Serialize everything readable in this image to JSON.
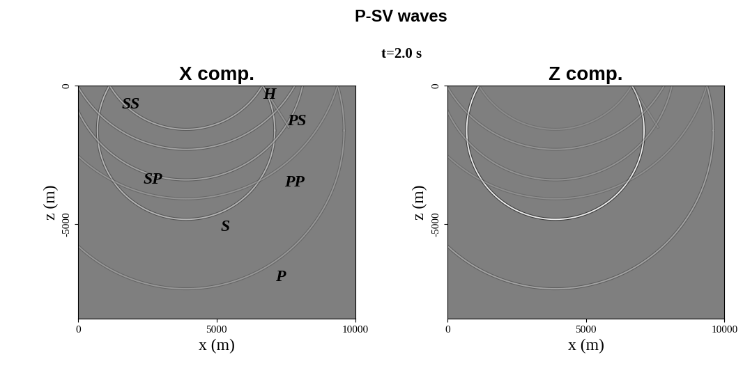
{
  "chart_data": {
    "type": "wavefield_snapshot",
    "title": "P-SV waves",
    "subtitle": "t=2.0 s",
    "panels": [
      {
        "title": "X comp.",
        "xlabel": "x (m)",
        "ylabel": "z (m)",
        "xlim": [
          0,
          10000
        ],
        "ylim": [
          -8400,
          0
        ],
        "xticks": [
          0,
          5000,
          10000
        ],
        "yticks": [
          -5000,
          0
        ],
        "fronts": [
          {
            "kind": "circle",
            "center": [
              3900,
              -1620
            ],
            "radius": 5700,
            "amplitude": 0.35
          },
          {
            "kind": "circle",
            "center": [
              3900,
              -1620
            ],
            "radius": 3200,
            "amplitude": 0.6
          },
          {
            "kind": "circle",
            "center": [
              3900,
              1620
            ],
            "radius": 5700,
            "amplitude": 0.3
          },
          {
            "kind": "circle",
            "center": [
              3900,
              1620
            ],
            "radius": 3200,
            "amplitude": 0.5
          },
          {
            "kind": "circle",
            "center": [
              3900,
              900
            ],
            "radius": 4300,
            "amplitude": 0.45
          },
          {
            "kind": "circle",
            "center": [
              3900,
              2200
            ],
            "radius": 4500,
            "amplitude": 0.45
          },
          {
            "kind": "segment",
            "points": [
              [
                6650,
                0
              ],
              [
                7600,
                -1500
              ]
            ],
            "amplitude": 0.3
          }
        ],
        "annotations": [
          {
            "text": "SS",
            "x": 1900,
            "z": -700
          },
          {
            "text": "H",
            "x": 6900,
            "z": -350
          },
          {
            "text": "PS",
            "x": 7900,
            "z": -1300
          },
          {
            "text": "SP",
            "x": 2700,
            "z": -3400
          },
          {
            "text": "PP",
            "x": 7800,
            "z": -3500
          },
          {
            "text": "S",
            "x": 5300,
            "z": -5100
          },
          {
            "text": "P",
            "x": 7300,
            "z": -6900
          }
        ]
      },
      {
        "title": "Z comp.",
        "xlabel": "x (m)",
        "ylabel": "z (m)",
        "xlim": [
          0,
          10000
        ],
        "ylim": [
          -8400,
          0
        ],
        "xticks": [
          0,
          5000,
          10000
        ],
        "yticks": [
          -5000,
          0
        ],
        "fronts": [
          {
            "kind": "circle",
            "center": [
              3900,
              -1620
            ],
            "radius": 5700,
            "amplitude": 0.45
          },
          {
            "kind": "circle",
            "center": [
              3900,
              -1620
            ],
            "radius": 3200,
            "amplitude": 0.95
          },
          {
            "kind": "circle",
            "center": [
              3900,
              1620
            ],
            "radius": 5700,
            "amplitude": 0.25
          },
          {
            "kind": "circle",
            "center": [
              3900,
              1620
            ],
            "radius": 3200,
            "amplitude": 0.2
          },
          {
            "kind": "circle",
            "center": [
              3900,
              900
            ],
            "radius": 4300,
            "amplitude": 0.3
          },
          {
            "kind": "circle",
            "center": [
              3900,
              2200
            ],
            "radius": 4500,
            "amplitude": 0.3
          },
          {
            "kind": "segment",
            "points": [
              [
                6650,
                0
              ],
              [
                7600,
                -1500
              ]
            ],
            "amplitude": 0.2
          }
        ],
        "annotations": []
      }
    ]
  }
}
